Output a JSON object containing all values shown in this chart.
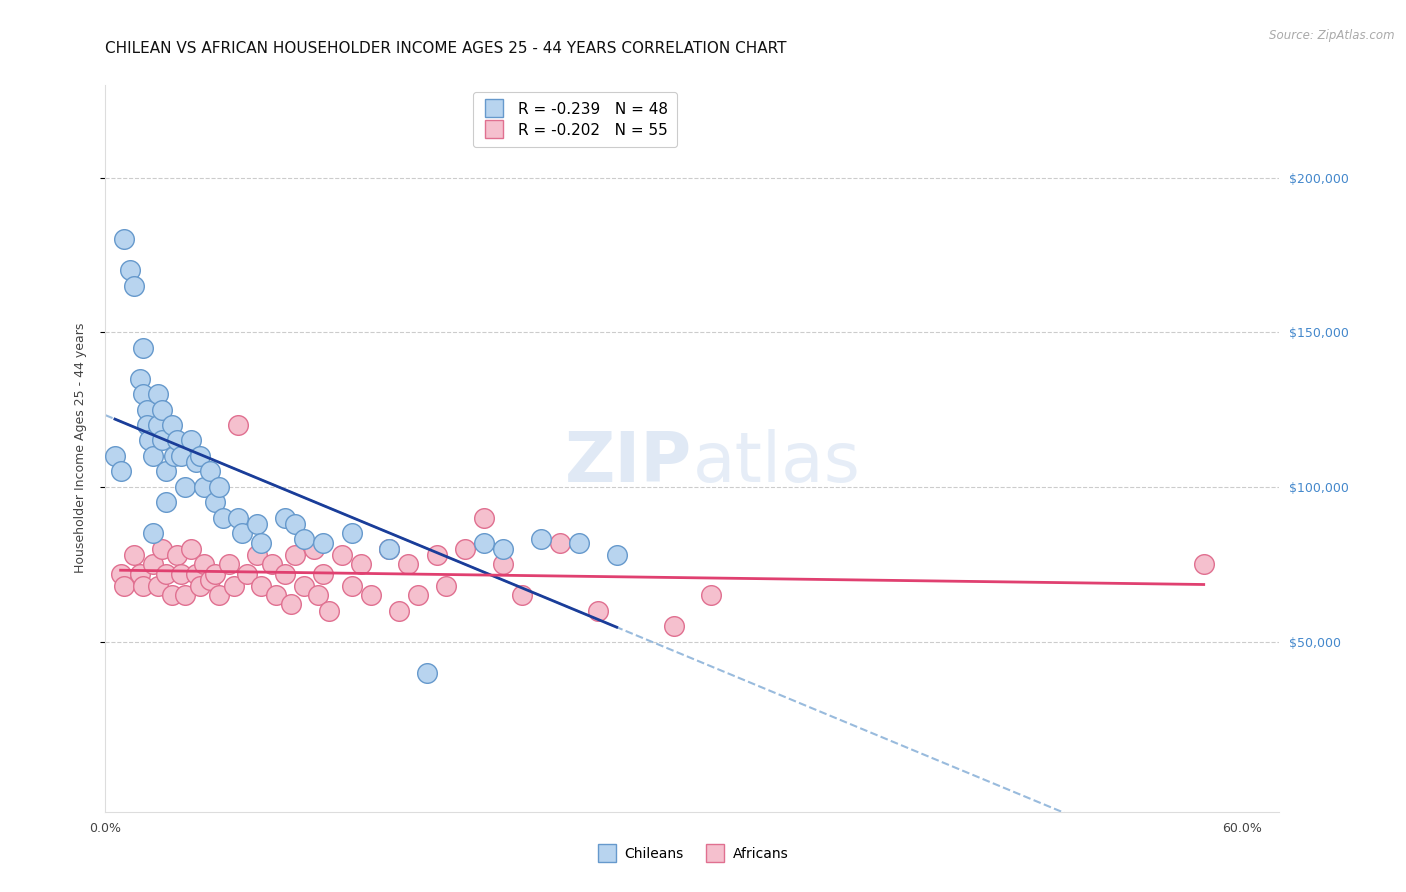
{
  "title": "CHILEAN VS AFRICAN HOUSEHOLDER INCOME AGES 25 - 44 YEARS CORRELATION CHART",
  "source": "Source: ZipAtlas.com",
  "ylabel": "Householder Income Ages 25 - 44 years",
  "xlim": [
    0.0,
    0.62
  ],
  "ylim": [
    -5000,
    230000
  ],
  "background_color": "#ffffff",
  "grid_color": "#cccccc",
  "chilean_color": "#b8d4ef",
  "chilean_edge_color": "#6699cc",
  "african_color": "#f5c0ce",
  "african_edge_color": "#e07090",
  "chilean_line_color": "#1a3d99",
  "african_line_color": "#e04070",
  "dashed_line_color": "#99bbdd",
  "legend_r_chilean": "R = -0.239",
  "legend_n_chilean": "N = 48",
  "legend_r_african": "R = -0.202",
  "legend_n_african": "N = 55",
  "title_fontsize": 11,
  "axis_label_fontsize": 9,
  "tick_fontsize": 9,
  "right_tick_color": "#4488cc",
  "chilean_x": [
    0.005,
    0.008,
    0.01,
    0.013,
    0.015,
    0.018,
    0.02,
    0.02,
    0.022,
    0.022,
    0.023,
    0.025,
    0.025,
    0.028,
    0.028,
    0.03,
    0.03,
    0.032,
    0.032,
    0.035,
    0.036,
    0.038,
    0.04,
    0.042,
    0.045,
    0.048,
    0.05,
    0.052,
    0.055,
    0.058,
    0.06,
    0.062,
    0.07,
    0.072,
    0.08,
    0.082,
    0.095,
    0.1,
    0.105,
    0.115,
    0.13,
    0.15,
    0.17,
    0.2,
    0.21,
    0.23,
    0.25,
    0.27
  ],
  "chilean_y": [
    110000,
    105000,
    180000,
    170000,
    165000,
    135000,
    145000,
    130000,
    125000,
    120000,
    115000,
    110000,
    85000,
    130000,
    120000,
    125000,
    115000,
    105000,
    95000,
    120000,
    110000,
    115000,
    110000,
    100000,
    115000,
    108000,
    110000,
    100000,
    105000,
    95000,
    100000,
    90000,
    90000,
    85000,
    88000,
    82000,
    90000,
    88000,
    83000,
    82000,
    85000,
    80000,
    40000,
    82000,
    80000,
    83000,
    82000,
    78000
  ],
  "african_x": [
    0.008,
    0.01,
    0.015,
    0.018,
    0.02,
    0.025,
    0.028,
    0.03,
    0.032,
    0.035,
    0.038,
    0.04,
    0.042,
    0.045,
    0.048,
    0.05,
    0.052,
    0.055,
    0.058,
    0.06,
    0.065,
    0.068,
    0.07,
    0.075,
    0.08,
    0.082,
    0.088,
    0.09,
    0.095,
    0.098,
    0.1,
    0.105,
    0.11,
    0.112,
    0.115,
    0.118,
    0.125,
    0.13,
    0.135,
    0.14,
    0.15,
    0.155,
    0.16,
    0.165,
    0.175,
    0.18,
    0.19,
    0.2,
    0.21,
    0.22,
    0.24,
    0.26,
    0.3,
    0.32,
    0.58
  ],
  "african_y": [
    72000,
    68000,
    78000,
    72000,
    68000,
    75000,
    68000,
    80000,
    72000,
    65000,
    78000,
    72000,
    65000,
    80000,
    72000,
    68000,
    75000,
    70000,
    72000,
    65000,
    75000,
    68000,
    120000,
    72000,
    78000,
    68000,
    75000,
    65000,
    72000,
    62000,
    78000,
    68000,
    80000,
    65000,
    72000,
    60000,
    78000,
    68000,
    75000,
    65000,
    80000,
    60000,
    75000,
    65000,
    78000,
    68000,
    80000,
    90000,
    75000,
    65000,
    82000,
    60000,
    55000,
    65000,
    75000
  ]
}
